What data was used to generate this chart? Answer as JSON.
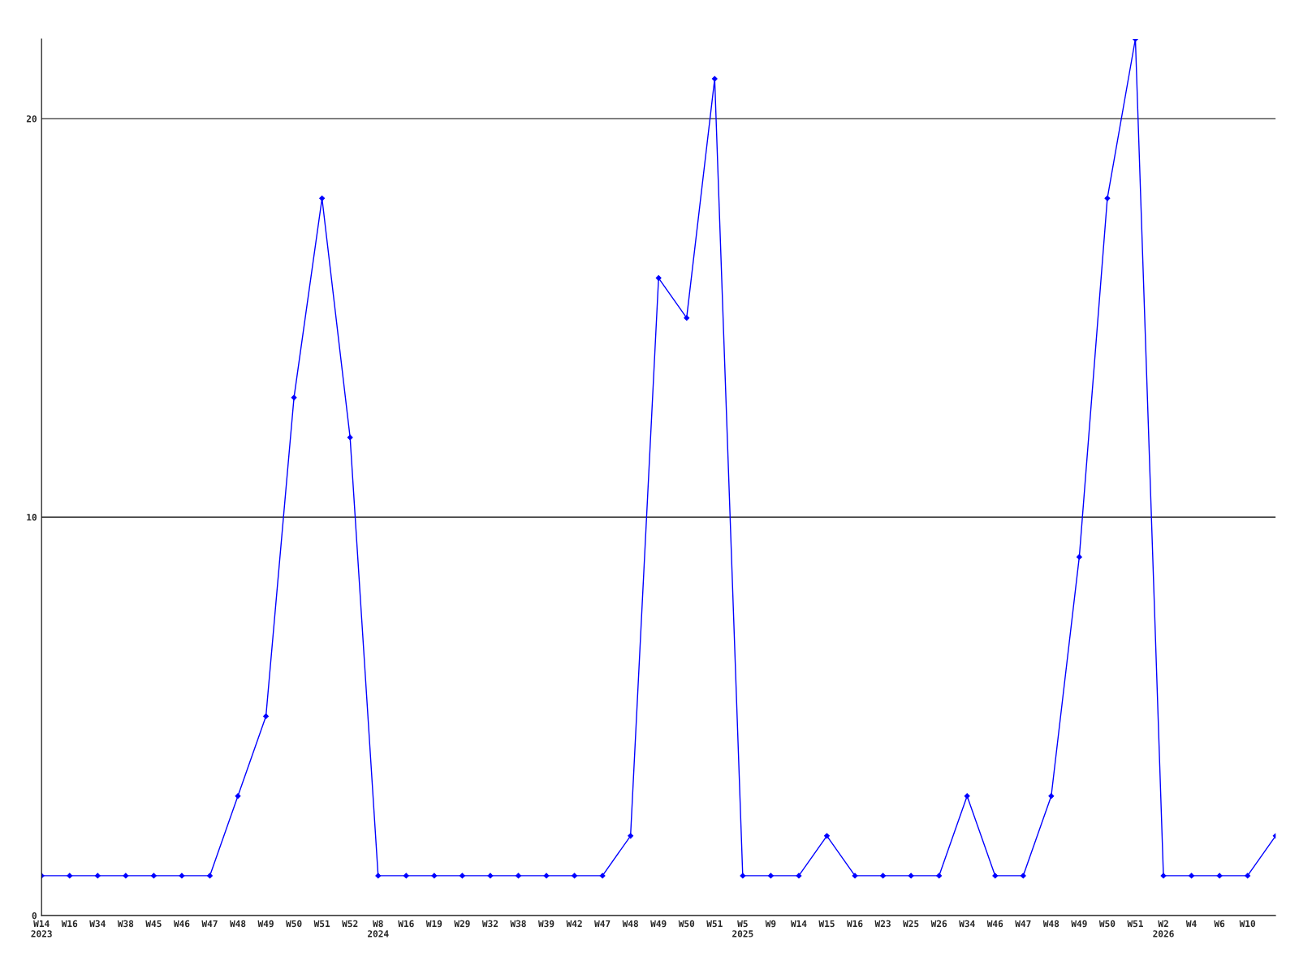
{
  "chart_data": {
    "type": "line",
    "categories": [
      "W14\n2023",
      "W16",
      "W34",
      "W38",
      "W45",
      "W46",
      "W47",
      "W48",
      "W49",
      "W50",
      "W51",
      "W52",
      "W8\n2024",
      "W16",
      "W19",
      "W29",
      "W32",
      "W38",
      "W39",
      "W42",
      "W47",
      "W48",
      "W49",
      "W50",
      "W51",
      "W5\n2025",
      "W9",
      "W14",
      "W15",
      "W16",
      "W23",
      "W25",
      "W26",
      "W34",
      "W46",
      "W47",
      "W48",
      "W49",
      "W50",
      "W51",
      "W2\n2026",
      "W4",
      "W6",
      "W10",
      null
    ],
    "series": [
      {
        "color": "#0000ff",
        "values": [
          1,
          1,
          1,
          1,
          1,
          1,
          1,
          3,
          5,
          13,
          18,
          12,
          1,
          1,
          1,
          1,
          1,
          1,
          1,
          1,
          1,
          2,
          16,
          15,
          21,
          1,
          1,
          1,
          2,
          1,
          1,
          1,
          1,
          3,
          1,
          1,
          3,
          9,
          18,
          22,
          1,
          1,
          1,
          1,
          2
        ]
      }
    ],
    "ylim": [
      0,
      22
    ],
    "yticks": [
      0,
      10,
      20
    ],
    "grid": "y",
    "marker": "diamond",
    "line_style": "solid",
    "legend": false
  }
}
